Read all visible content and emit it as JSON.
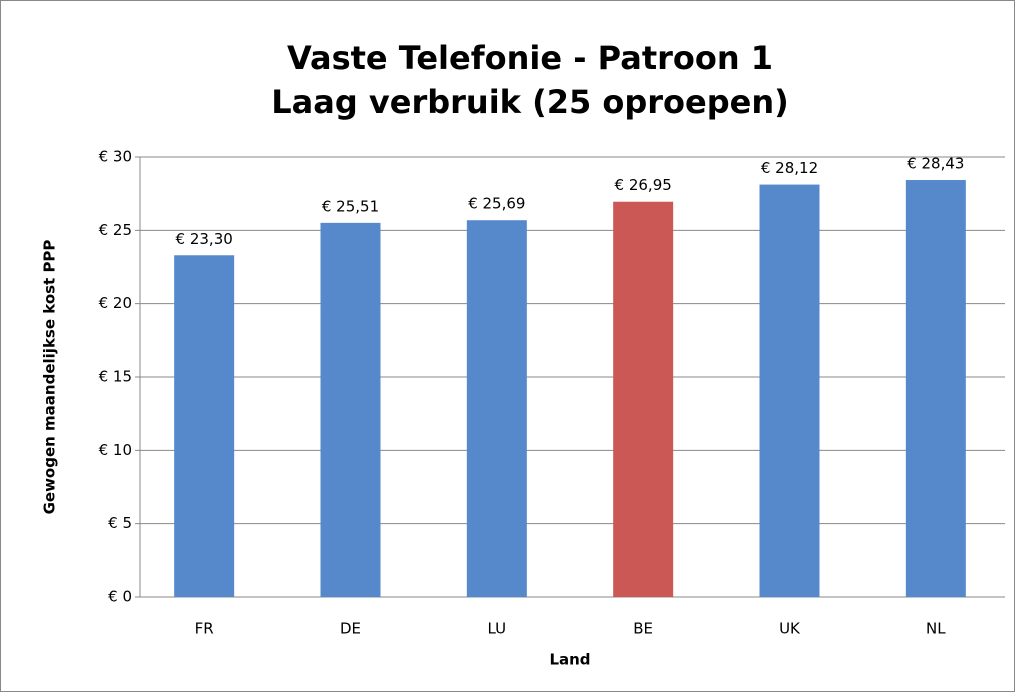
{
  "chart_data": {
    "type": "bar",
    "title": "Vaste Telefonie - Patroon 1",
    "subtitle": "Laag verbruik (25 oproepen)",
    "x_label": "Land",
    "y_label": "Gewogen maandelijkse kost PPP",
    "categories": [
      "FR",
      "DE",
      "LU",
      "BE",
      "UK",
      "NL"
    ],
    "values": [
      23.3,
      25.51,
      25.69,
      26.95,
      28.12,
      28.43
    ],
    "value_labels": [
      "€ 23,30",
      "€ 25,51",
      "€ 25,69",
      "€ 26,95",
      "€ 28,12",
      "€ 28,43"
    ],
    "colors": [
      "#5589cb",
      "#5589cb",
      "#5589cb",
      "#cc5855",
      "#5589cb",
      "#5589cb"
    ],
    "ylim": [
      0,
      30
    ],
    "yticks": [
      {
        "value": 0,
        "label": "€ 0"
      },
      {
        "value": 5,
        "label": "€ 5"
      },
      {
        "value": 10,
        "label": "€ 10"
      },
      {
        "value": 15,
        "label": "€ 15"
      },
      {
        "value": 20,
        "label": "€ 20"
      },
      {
        "value": 25,
        "label": "€ 25"
      },
      {
        "value": 30,
        "label": "€ 30"
      }
    ],
    "grid": true
  }
}
